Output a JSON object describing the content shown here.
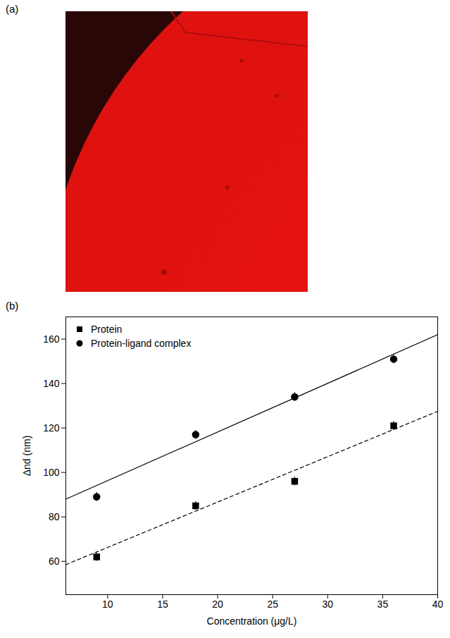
{
  "panel_labels": [
    "(a)",
    "(b)"
  ],
  "chart_data": {
    "type": "scatter",
    "x_label": "Concentration (μg/L)",
    "y_label": "Δnd (nm)",
    "xlim": [
      6.2,
      40
    ],
    "xticks": [
      10,
      15,
      20,
      25,
      30,
      35,
      40
    ],
    "ylim": [
      45,
      170
    ],
    "yticks": [
      60,
      80,
      100,
      120,
      140,
      160
    ],
    "legend": "upper left",
    "x": [
      9,
      18,
      27,
      36
    ],
    "series": [
      {
        "name": "Protein",
        "color": "#000000",
        "marker": "square",
        "line_style": "dashed",
        "values": [
          62,
          85,
          96,
          121
        ],
        "errors": [
          2,
          2,
          2,
          2
        ],
        "fit_line": {
          "x": [
            6.2,
            40
          ],
          "values": [
            58.5,
            127.5
          ]
        }
      },
      {
        "name": "Protein-ligand complex",
        "color": "#000000",
        "marker": "circle",
        "line_style": "solid",
        "values": [
          89,
          117,
          134,
          151
        ],
        "errors": [
          2,
          2,
          2,
          2
        ],
        "fit_line": {
          "x": [
            6.2,
            40
          ],
          "values": [
            88,
            162
          ]
        }
      }
    ]
  }
}
